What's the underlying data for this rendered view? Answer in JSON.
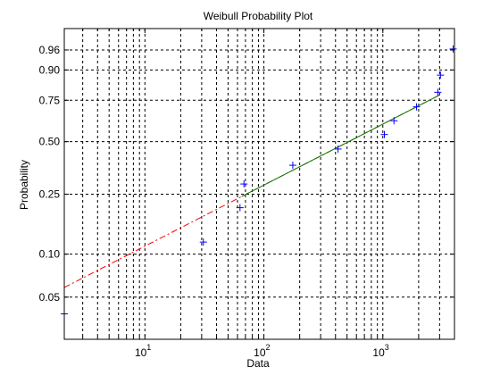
{
  "chart_data": {
    "type": "scatter",
    "title": "Weibull Probability Plot",
    "xlabel": "Data",
    "ylabel": "Probability",
    "x_scale": "log",
    "y_scale": "weibull probability",
    "xlim": [
      2.1,
      4000
    ],
    "ylim": [
      0.025,
      0.99
    ],
    "grid": true,
    "x_ticks": [
      {
        "value": 10,
        "base": "10",
        "exp": "1"
      },
      {
        "value": 100,
        "base": "10",
        "exp": "2"
      },
      {
        "value": 1000,
        "base": "10",
        "exp": "3"
      }
    ],
    "y_ticks": [
      {
        "value": 0.05,
        "label": "0.05"
      },
      {
        "value": 0.1,
        "label": "0.10"
      },
      {
        "value": 0.25,
        "label": "0.25"
      },
      {
        "value": 0.5,
        "label": "0.50"
      },
      {
        "value": 0.75,
        "label": "0.75"
      },
      {
        "value": 0.9,
        "label": "0.90"
      },
      {
        "value": 0.96,
        "label": "0.96"
      }
    ],
    "series": [
      {
        "marker": "+",
        "color": "#0000ff",
        "points": [
          {
            "x": 2.1,
            "y": 0.038
          },
          {
            "x": 31,
            "y": 0.121
          },
          {
            "x": 63,
            "y": 0.205
          },
          {
            "x": 68,
            "y": 0.289
          },
          {
            "x": 175,
            "y": 0.373
          },
          {
            "x": 420,
            "y": 0.458
          },
          {
            "x": 1030,
            "y": 0.542
          },
          {
            "x": 1240,
            "y": 0.626
          },
          {
            "x": 1920,
            "y": 0.711
          },
          {
            "x": 2900,
            "y": 0.795
          },
          {
            "x": 3050,
            "y": 0.879
          },
          {
            "x": 3900,
            "y": 0.962
          }
        ]
      }
    ],
    "fit_line": {
      "color": "#ff0000",
      "solid_color": "#008000",
      "points": [
        {
          "x": 2.1,
          "y": 0.0585
        },
        {
          "x": 3000,
          "y": 0.78
        }
      ],
      "solid_range": [
        65,
        2900
      ]
    }
  }
}
